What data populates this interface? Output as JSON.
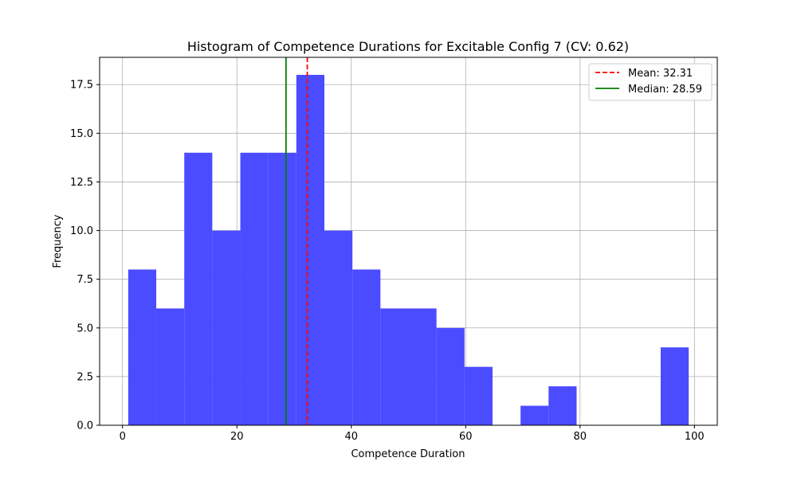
{
  "chart_data": {
    "type": "bar",
    "title": "Histogram of Competence Durations for Excitable Config 7 (CV: 0.62)",
    "xlabel": "Competence Duration",
    "ylabel": "Frequency",
    "xlim": [
      -4,
      104
    ],
    "ylim": [
      0,
      18.9
    ],
    "xticks": [
      0,
      20,
      40,
      60,
      80,
      100
    ],
    "xtick_labels": [
      "0",
      "20",
      "40",
      "60",
      "80",
      "100"
    ],
    "yticks": [
      0,
      2.5,
      5,
      7.5,
      10,
      12.5,
      15,
      17.5
    ],
    "ytick_labels": [
      "0.0",
      "2.5",
      "5.0",
      "7.5",
      "10.0",
      "12.5",
      "15.0",
      "17.5"
    ],
    "grid": true,
    "bar_color": "#4b4bff",
    "bins": [
      {
        "start": 1.0,
        "end": 5.9,
        "value": 8
      },
      {
        "start": 5.9,
        "end": 10.8,
        "value": 6
      },
      {
        "start": 10.8,
        "end": 15.7,
        "value": 14
      },
      {
        "start": 15.7,
        "end": 20.6,
        "value": 10
      },
      {
        "start": 20.6,
        "end": 25.5,
        "value": 14
      },
      {
        "start": 25.5,
        "end": 30.4,
        "value": 14
      },
      {
        "start": 30.4,
        "end": 35.3,
        "value": 18
      },
      {
        "start": 35.3,
        "end": 40.2,
        "value": 10
      },
      {
        "start": 40.2,
        "end": 45.1,
        "value": 8
      },
      {
        "start": 45.1,
        "end": 50.0,
        "value": 6
      },
      {
        "start": 50.0,
        "end": 54.9,
        "value": 6
      },
      {
        "start": 54.9,
        "end": 59.8,
        "value": 5
      },
      {
        "start": 59.8,
        "end": 64.7,
        "value": 3
      },
      {
        "start": 64.7,
        "end": 69.6,
        "value": 0
      },
      {
        "start": 69.6,
        "end": 74.5,
        "value": 1
      },
      {
        "start": 74.5,
        "end": 79.4,
        "value": 2
      },
      {
        "start": 79.4,
        "end": 84.3,
        "value": 0
      },
      {
        "start": 84.3,
        "end": 89.2,
        "value": 0
      },
      {
        "start": 89.2,
        "end": 94.1,
        "value": 0
      },
      {
        "start": 94.1,
        "end": 99.0,
        "value": 4
      }
    ],
    "mean": {
      "value": 32.31,
      "label": "Mean: 32.31",
      "color": "#ff0000",
      "style": "dashed"
    },
    "median": {
      "value": 28.59,
      "label": "Median: 28.59",
      "color": "#008000",
      "style": "solid"
    },
    "legend": {
      "placement": "top-right",
      "entries": [
        "Mean: 32.31",
        "Median: 28.59"
      ]
    }
  }
}
